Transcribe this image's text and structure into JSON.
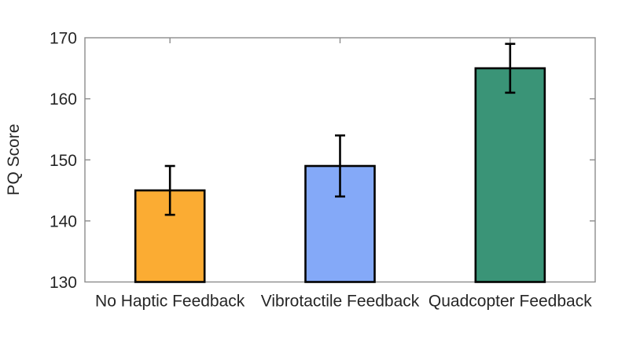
{
  "chart_data": {
    "type": "bar",
    "title": "",
    "ylabel": "PQ Score",
    "xlabel": "",
    "categories": [
      "No Haptic Feedback",
      "Vibrotactile Feedback",
      "Quadcopter Feedback"
    ],
    "values": [
      145,
      149,
      165
    ],
    "errors": [
      4,
      5,
      4
    ],
    "error_low": [
      141,
      144,
      161
    ],
    "error_high": [
      149,
      154,
      169
    ],
    "bar_colors": [
      "#FBAC33",
      "#84A9F8",
      "#3A9477"
    ],
    "bar_edge_color": "#000000",
    "error_bar_color": "#000000",
    "ylim": [
      130,
      170
    ],
    "yticks": [
      130,
      140,
      150,
      160,
      170
    ],
    "grid": false,
    "legend": null,
    "axis_color": "#8C8C8C",
    "text_color": "#262626",
    "background_color": "#FFFFFF"
  }
}
